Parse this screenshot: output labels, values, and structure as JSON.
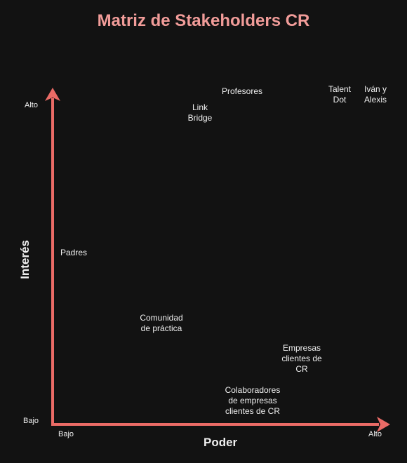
{
  "title": "Matriz de Stakeholders CR",
  "axes": {
    "x_label": "Poder",
    "y_label": "Interés",
    "x_low": "Bajo",
    "x_high": "Alto",
    "y_low": "Bajo",
    "y_high": "Alto",
    "color": "#ea6b66"
  },
  "stakeholders": [
    {
      "text": "Profesores"
    },
    {
      "text": "Link\nBridge"
    },
    {
      "text": "Talent\nDot"
    },
    {
      "text": "Iván y\nAlexis"
    },
    {
      "text": "Padres"
    },
    {
      "text": "Comunidad\nde práctica"
    },
    {
      "text": "Empresas\nclientes de\nCR"
    },
    {
      "text": "Colaboradores\nde empresas\nclientes de CR"
    }
  ]
}
